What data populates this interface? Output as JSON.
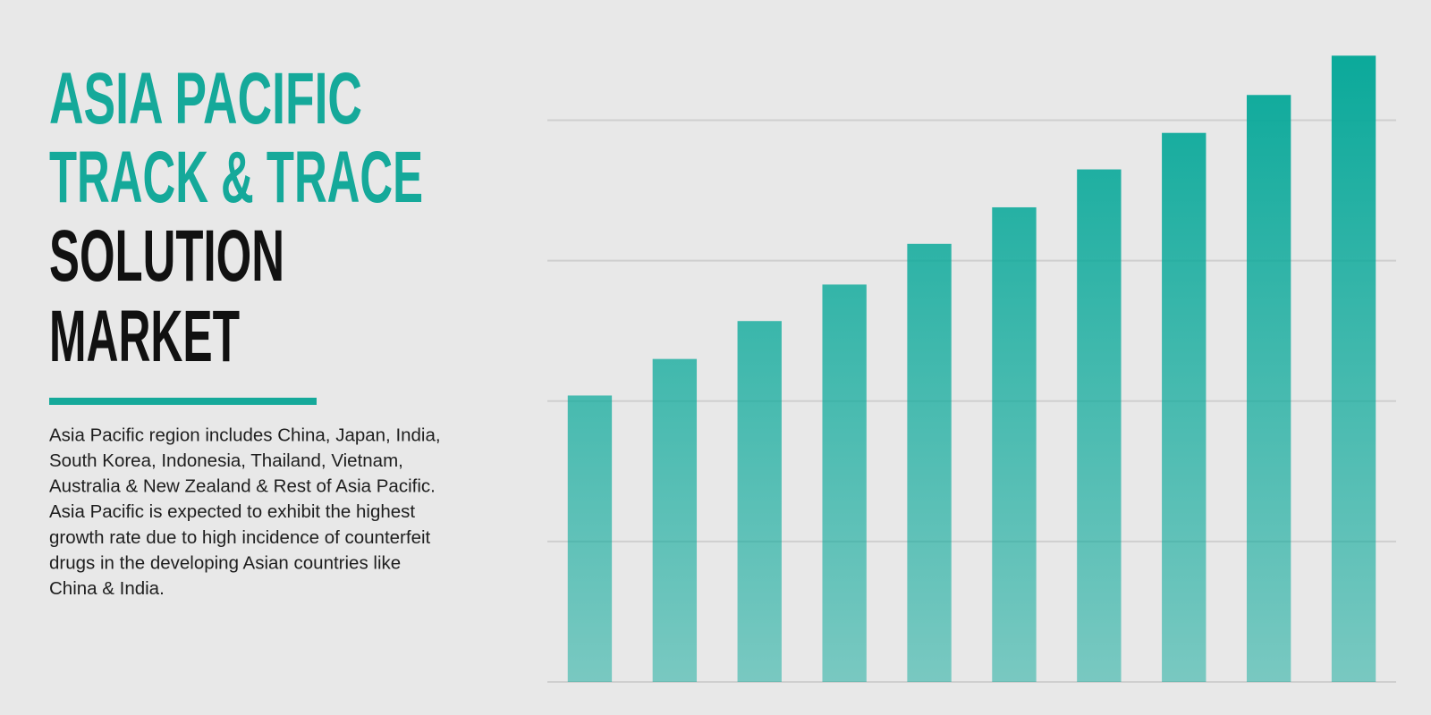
{
  "chart_data": {
    "type": "bar",
    "title_lines": [
      "ASIA PACIFIC",
      "TRACK & TRACE",
      "SOLUTION",
      "MARKET"
    ],
    "title_colors": [
      "#15a99a",
      "#15a99a",
      "#111111",
      "#111111"
    ],
    "description_lines": [
      "Asia Pacific region includes China, Japan, India,",
      "South Korea, Indonesia, Thailand, Vietnam,",
      "Australia & New Zealand & Rest of Asia Pacific.",
      "Asia Pacific is expected to exhibit the highest",
      "growth rate due to high incidence of counterfeit",
      "drugs in the developing Asian countries like",
      "China & India."
    ],
    "categories": [
      null,
      null,
      null,
      null,
      null,
      null,
      null,
      null,
      null,
      null
    ],
    "values": [
      2.04,
      2.3,
      2.57,
      2.83,
      3.12,
      3.38,
      3.65,
      3.91,
      4.18,
      4.46
    ],
    "color": "#0aa99a",
    "ylim": [
      0,
      4.5
    ],
    "yticks": [
      0,
      1,
      2,
      3,
      4
    ],
    "grid": true
  }
}
